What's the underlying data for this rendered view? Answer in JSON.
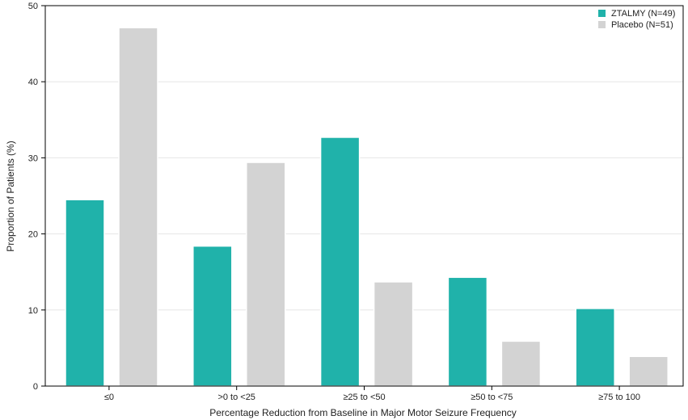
{
  "chart_data": {
    "type": "bar",
    "title": "",
    "xlabel": "Percentage Reduction from Baseline in Major Motor Seizure Frequency",
    "ylabel": "Proportion of Patients (%)",
    "ylim": [
      0,
      50
    ],
    "yticks": [
      0,
      10,
      20,
      30,
      40,
      50
    ],
    "grid": true,
    "legend_position": "top-right",
    "categories": [
      "≤0",
      ">0 to <25",
      "≥25 to <50",
      "≥50 to <75",
      "≥75 to 100"
    ],
    "series": [
      {
        "name": "ZTALMY (N=49)",
        "color": "#20b2aa",
        "values": [
          24.5,
          18.4,
          32.7,
          14.3,
          10.2
        ]
      },
      {
        "name": "Placebo (N=51)",
        "color": "#d3d3d3",
        "values": [
          47.1,
          29.4,
          13.7,
          5.9,
          3.9
        ]
      }
    ]
  }
}
